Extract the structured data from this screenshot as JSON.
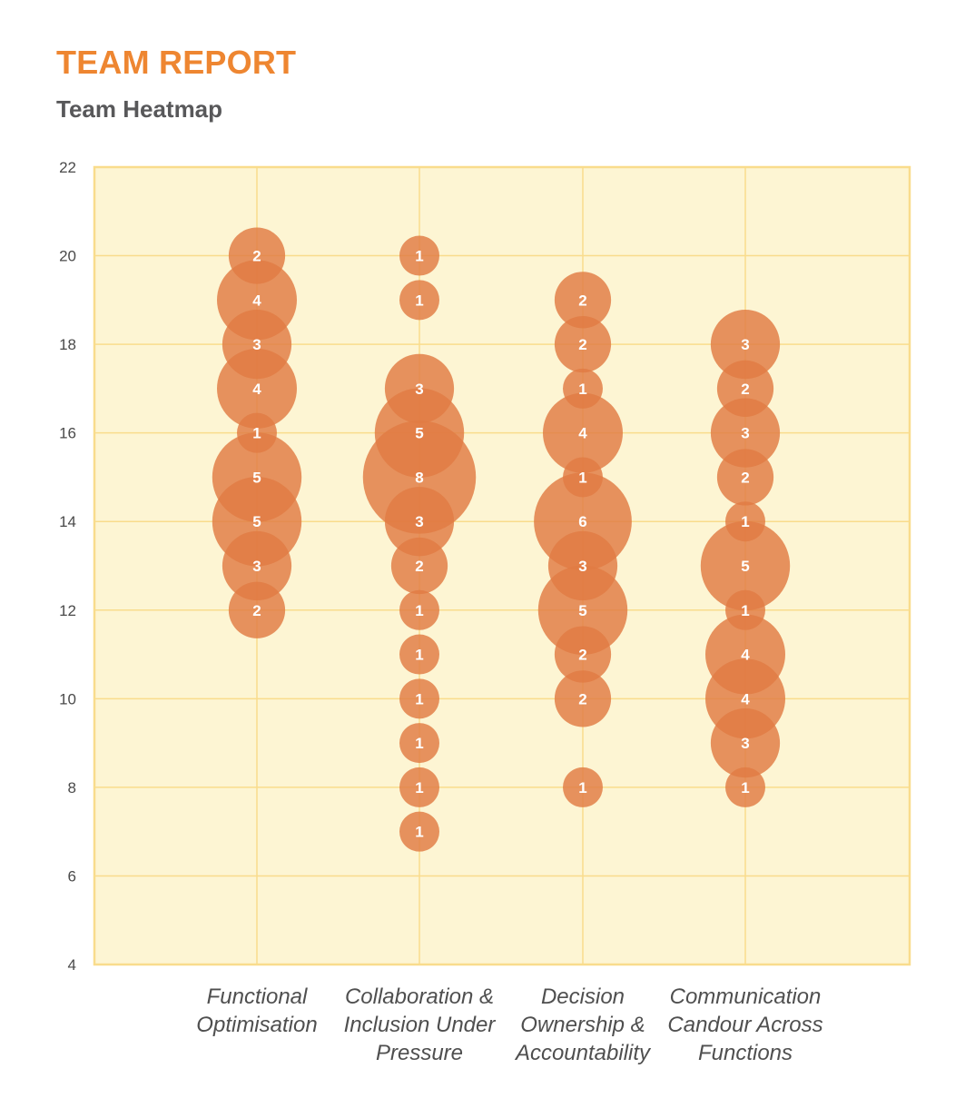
{
  "report": {
    "title": "TEAM REPORT"
  },
  "chart_data": {
    "type": "bubble",
    "title": "Team Heatmap",
    "xlabel": "",
    "ylabel": "",
    "ylim": [
      4,
      22
    ],
    "yticks": [
      4,
      6,
      8,
      10,
      12,
      14,
      16,
      18,
      20,
      22
    ],
    "grid": true,
    "colors": {
      "bubble": "#e07b43",
      "plot_bg": "#fdf5d3",
      "grid": "#f9dc8c",
      "frame": "#f9dc8c"
    },
    "categories": [
      {
        "label": [
          "Functional",
          "Optimisation"
        ]
      },
      {
        "label": [
          "Collaboration &",
          "Inclusion Under",
          "Pressure"
        ]
      },
      {
        "label": [
          "Decision",
          "Ownership &",
          "Accountability"
        ]
      },
      {
        "label": [
          "Communication",
          "Candour Across",
          "Functions"
        ]
      }
    ],
    "series": [
      {
        "category": 0,
        "points": [
          {
            "y": 20,
            "count": 2
          },
          {
            "y": 19,
            "count": 4
          },
          {
            "y": 18,
            "count": 3
          },
          {
            "y": 17,
            "count": 4
          },
          {
            "y": 16,
            "count": 1
          },
          {
            "y": 15,
            "count": 5
          },
          {
            "y": 14,
            "count": 5
          },
          {
            "y": 13,
            "count": 3
          },
          {
            "y": 12,
            "count": 2
          }
        ]
      },
      {
        "category": 1,
        "points": [
          {
            "y": 20,
            "count": 1
          },
          {
            "y": 19,
            "count": 1
          },
          {
            "y": 17,
            "count": 3
          },
          {
            "y": 16,
            "count": 5
          },
          {
            "y": 15,
            "count": 8
          },
          {
            "y": 14,
            "count": 3
          },
          {
            "y": 13,
            "count": 2
          },
          {
            "y": 12,
            "count": 1
          },
          {
            "y": 11,
            "count": 1
          },
          {
            "y": 10,
            "count": 1
          },
          {
            "y": 9,
            "count": 1
          },
          {
            "y": 8,
            "count": 1
          },
          {
            "y": 7,
            "count": 1
          }
        ]
      },
      {
        "category": 2,
        "points": [
          {
            "y": 19,
            "count": 2
          },
          {
            "y": 18,
            "count": 2
          },
          {
            "y": 17,
            "count": 1
          },
          {
            "y": 16,
            "count": 4
          },
          {
            "y": 15,
            "count": 1
          },
          {
            "y": 14,
            "count": 6
          },
          {
            "y": 13,
            "count": 3
          },
          {
            "y": 12,
            "count": 5
          },
          {
            "y": 11,
            "count": 2
          },
          {
            "y": 10,
            "count": 2
          },
          {
            "y": 8,
            "count": 1
          }
        ]
      },
      {
        "category": 3,
        "points": [
          {
            "y": 18,
            "count": 3
          },
          {
            "y": 17,
            "count": 2
          },
          {
            "y": 16,
            "count": 3
          },
          {
            "y": 15,
            "count": 2
          },
          {
            "y": 14,
            "count": 1
          },
          {
            "y": 13,
            "count": 5
          },
          {
            "y": 12,
            "count": 1
          },
          {
            "y": 11,
            "count": 4
          },
          {
            "y": 10,
            "count": 4
          },
          {
            "y": 9,
            "count": 3
          },
          {
            "y": 8,
            "count": 1
          }
        ]
      }
    ]
  }
}
